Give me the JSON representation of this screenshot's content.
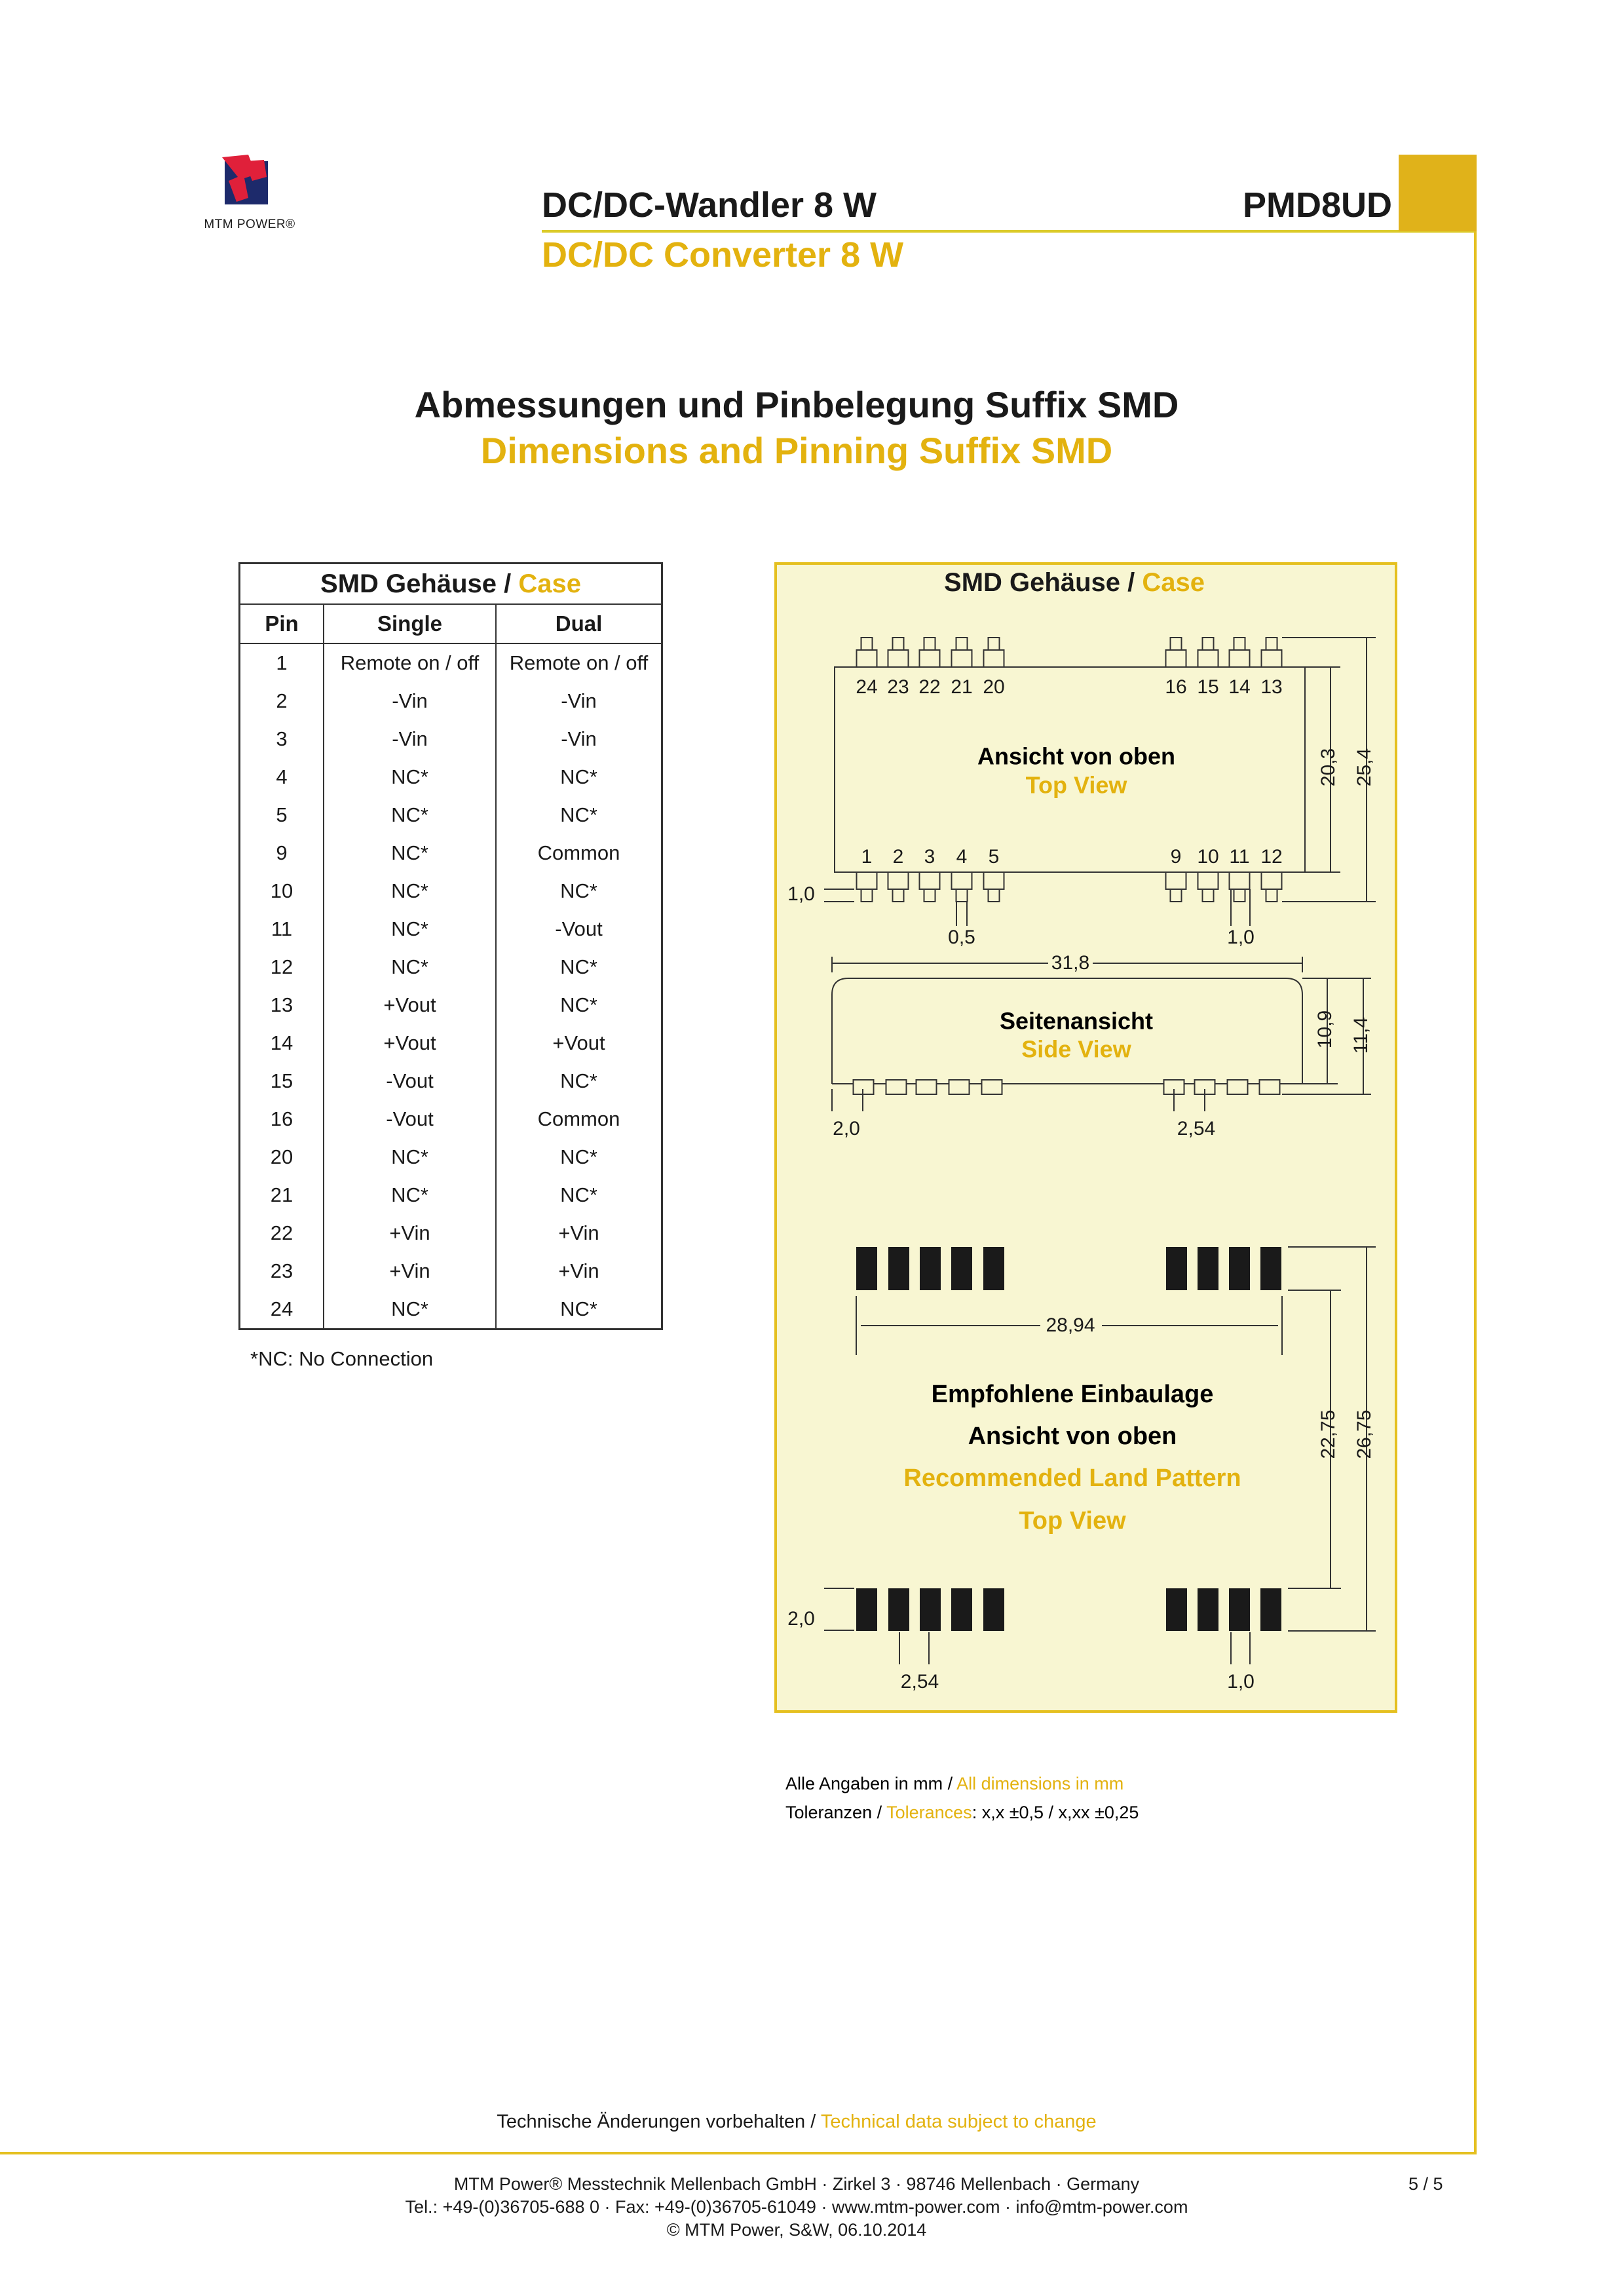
{
  "header": {
    "logo_text": "MTM POWER®",
    "title_de": "DC/DC-Wandler 8 W",
    "title_en": "DC/DC Converter 8 W",
    "product": "PMD8UD"
  },
  "section": {
    "heading_de": "Abmessungen und Pinbelegung Suffix SMD",
    "heading_en": "Dimensions and Pinning Suffix SMD"
  },
  "table": {
    "caption_de": "SMD Gehäuse / ",
    "caption_en": "Case",
    "columns": [
      "Pin",
      "Single",
      "Dual"
    ],
    "rows": [
      [
        "1",
        "Remote on / off",
        "Remote on / off"
      ],
      [
        "2",
        "-Vin",
        "-Vin"
      ],
      [
        "3",
        "-Vin",
        "-Vin"
      ],
      [
        "4",
        "NC*",
        "NC*"
      ],
      [
        "5",
        "NC*",
        "NC*"
      ],
      [
        "9",
        "NC*",
        "Common"
      ],
      [
        "10",
        "NC*",
        "NC*"
      ],
      [
        "11",
        "NC*",
        "-Vout"
      ],
      [
        "12",
        "NC*",
        "NC*"
      ],
      [
        "13",
        "+Vout",
        "NC*"
      ],
      [
        "14",
        "+Vout",
        "+Vout"
      ],
      [
        "15",
        "-Vout",
        "NC*"
      ],
      [
        "16",
        "-Vout",
        "Common"
      ],
      [
        "20",
        "NC*",
        "NC*"
      ],
      [
        "21",
        "NC*",
        "NC*"
      ],
      [
        "22",
        "+Vin",
        "+Vin"
      ],
      [
        "23",
        "+Vin",
        "+Vin"
      ],
      [
        "24",
        "NC*",
        "NC*"
      ]
    ],
    "footnote": "*NC: No Connection"
  },
  "diagram": {
    "title_de": "SMD Gehäuse / ",
    "title_en": "Case",
    "top_pins": [
      "24",
      "23",
      "22",
      "21",
      "20",
      "16",
      "15",
      "14",
      "13"
    ],
    "bottom_pins": [
      "1",
      "2",
      "3",
      "4",
      "5",
      "9",
      "10",
      "11",
      "12"
    ],
    "top_view_de": "Ansicht von oben",
    "top_view_en": "Top View",
    "side_view_de": "Seitenansicht",
    "side_view_en": "Side View",
    "land_de_1": "Empfohlene Einbaulage",
    "land_de_2": "Ansicht von oben",
    "land_en_1": "Recommended Land Pattern",
    "land_en_2": "Top View",
    "dims": {
      "body_h": "20,3",
      "total_h": "25,4",
      "pin_len": "1,0",
      "pin_w": "0,5",
      "pin_w2": "1,0",
      "length": "31,8",
      "height": "10,9",
      "height_total": "11,4",
      "side_offset": "2,0",
      "pitch": "2,54",
      "pad_span": "28,94",
      "land_inner": "22,75",
      "land_outer": "26,75",
      "pad_len": "2,0",
      "pad_pitch": "2,54",
      "pad_w": "1,0"
    },
    "note_de": "Alle Angaben in mm / ",
    "note_en": "All dimensions in mm",
    "tol_de": "Toleranzen / ",
    "tol_en": "Tolerances",
    "tol_values": ": x,x ±0,5 / x,xx ±0,25"
  },
  "footer": {
    "note_de": "Technische Änderungen vorbehalten / ",
    "note_en": "Technical data subject to change",
    "line1": "MTM Power® Messtechnik Mellenbach GmbH · Zirkel 3 · 98746 Mellenbach · Germany",
    "line2": "Tel.: +49-(0)36705-688 0 · Fax: +49-(0)36705-61049 · www.mtm-power.com · info@mtm-power.com",
    "line3": "© MTM Power, S&W, 06.10.2014",
    "page": "5 / 5"
  },
  "colors": {
    "accent": "#e3b20f",
    "rule": "#e5c020",
    "panel": "#f8f6d2"
  }
}
